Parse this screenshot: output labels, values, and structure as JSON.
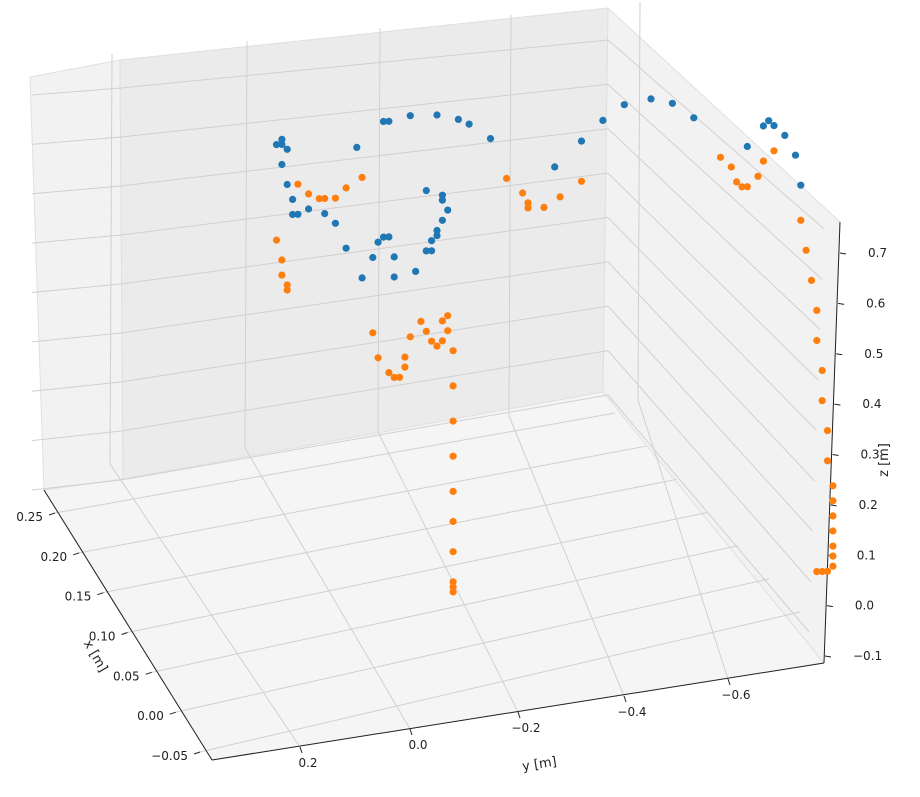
{
  "chart_data": {
    "type": "scatter3d",
    "title": "",
    "xlabel": "x [m]",
    "ylabel": "y [m]",
    "zlabel": "z [m]",
    "x_ticks": [
      "0.25",
      "0.20",
      "0.15",
      "0.10",
      "0.05",
      "0.00",
      "−0.05"
    ],
    "y_ticks": [
      "0.2",
      "0.0",
      "−0.2",
      "−0.4",
      "−0.6"
    ],
    "z_ticks": [
      "0.7",
      "0.6",
      "0.5",
      "0.4",
      "0.3",
      "0.2",
      "0.1",
      "0.0",
      "−0.1"
    ],
    "grid": true,
    "colors": {
      "series1": "#1f77b4",
      "series2": "#ff7f0e"
    },
    "series": [
      {
        "color": "#1f77b4",
        "points": [
          [
            0.0,
            0.3,
            0.66
          ],
          [
            0.0,
            0.29,
            0.67
          ],
          [
            0.0,
            0.29,
            0.66
          ],
          [
            0.0,
            0.28,
            0.65
          ],
          [
            0.0,
            0.29,
            0.62
          ],
          [
            0.0,
            0.28,
            0.58
          ],
          [
            0.0,
            0.27,
            0.55
          ],
          [
            0.0,
            0.27,
            0.52
          ],
          [
            0.0,
            0.26,
            0.52
          ],
          [
            0.0,
            0.24,
            0.53
          ],
          [
            0.0,
            0.21,
            0.52
          ],
          [
            0.0,
            0.19,
            0.5
          ],
          [
            0.0,
            0.17,
            0.45
          ],
          [
            0.0,
            0.14,
            0.39
          ],
          [
            0.0,
            0.12,
            0.43
          ],
          [
            0.0,
            0.11,
            0.46
          ],
          [
            0.0,
            0.1,
            0.47
          ],
          [
            0.0,
            0.09,
            0.47
          ],
          [
            0.0,
            0.08,
            0.43
          ],
          [
            0.0,
            0.08,
            0.39
          ],
          [
            0.0,
            0.04,
            0.4
          ],
          [
            0.0,
            0.01,
            0.44
          ],
          [
            0.0,
            0.0,
            0.48
          ],
          [
            0.0,
            -0.01,
            0.5
          ],
          [
            0.0,
            -0.02,
            0.52
          ],
          [
            0.0,
            -0.01,
            0.54
          ],
          [
            0.0,
            -0.01,
            0.55
          ],
          [
            0.0,
            0.02,
            0.56
          ],
          [
            0.0,
            0.0,
            0.47
          ],
          [
            0.0,
            0.01,
            0.46
          ],
          [
            0.0,
            0.02,
            0.44
          ],
          [
            0.0,
            0.15,
            0.65
          ],
          [
            0.0,
            0.1,
            0.7
          ],
          [
            0.0,
            0.09,
            0.7
          ],
          [
            0.0,
            0.05,
            0.71
          ],
          [
            0.0,
            0.0,
            0.71
          ],
          [
            0.0,
            -0.04,
            0.7
          ],
          [
            0.0,
            -0.06,
            0.69
          ],
          [
            0.0,
            -0.1,
            0.66
          ],
          [
            0.0,
            -0.22,
            0.6
          ],
          [
            0.0,
            -0.27,
            0.65
          ],
          [
            0.0,
            -0.31,
            0.69
          ],
          [
            0.0,
            -0.35,
            0.72
          ],
          [
            0.0,
            -0.4,
            0.73
          ],
          [
            0.0,
            -0.44,
            0.72
          ],
          [
            0.0,
            -0.48,
            0.69
          ],
          [
            0.0,
            -0.58,
            0.63
          ],
          [
            0.0,
            -0.61,
            0.67
          ],
          [
            0.0,
            -0.62,
            0.68
          ],
          [
            0.0,
            -0.63,
            0.67
          ],
          [
            0.0,
            -0.65,
            0.65
          ],
          [
            0.0,
            -0.67,
            0.61
          ],
          [
            0.0,
            -0.68,
            0.55
          ]
        ]
      },
      {
        "color": "#ff7f0e",
        "points": [
          [
            0.0,
            0.26,
            0.58
          ],
          [
            0.0,
            0.24,
            0.56
          ],
          [
            0.0,
            0.22,
            0.55
          ],
          [
            0.0,
            0.21,
            0.55
          ],
          [
            0.0,
            0.19,
            0.55
          ],
          [
            0.0,
            0.17,
            0.57
          ],
          [
            0.0,
            0.14,
            0.59
          ],
          [
            0.0,
            0.3,
            0.47
          ],
          [
            0.0,
            0.29,
            0.43
          ],
          [
            0.0,
            0.29,
            0.4
          ],
          [
            0.0,
            0.28,
            0.38
          ],
          [
            0.0,
            0.28,
            0.37
          ],
          [
            0.0,
            0.12,
            0.28
          ],
          [
            0.0,
            0.11,
            0.23
          ],
          [
            0.0,
            0.09,
            0.2
          ],
          [
            0.0,
            0.08,
            0.19
          ],
          [
            0.0,
            0.07,
            0.19
          ],
          [
            0.0,
            0.06,
            0.21
          ],
          [
            0.0,
            0.06,
            0.23
          ],
          [
            0.0,
            0.05,
            0.27
          ],
          [
            0.0,
            0.03,
            0.3
          ],
          [
            0.0,
            0.02,
            0.28
          ],
          [
            0.0,
            0.01,
            0.26
          ],
          [
            0.0,
            0.0,
            0.25
          ],
          [
            0.0,
            -0.01,
            0.26
          ],
          [
            0.0,
            -0.02,
            0.28
          ],
          [
            0.0,
            -0.01,
            0.3
          ],
          [
            0.0,
            -0.02,
            0.31
          ],
          [
            0.0,
            -0.03,
            0.24
          ],
          [
            0.0,
            -0.03,
            0.17
          ],
          [
            0.0,
            -0.03,
            0.1
          ],
          [
            0.0,
            -0.03,
            0.03
          ],
          [
            0.0,
            -0.03,
            -0.04
          ],
          [
            0.0,
            -0.03,
            -0.1
          ],
          [
            0.0,
            -0.03,
            -0.16
          ],
          [
            0.0,
            -0.03,
            -0.22
          ],
          [
            0.0,
            -0.03,
            -0.23
          ],
          [
            0.0,
            -0.03,
            -0.24
          ],
          [
            0.0,
            -0.13,
            0.58
          ],
          [
            0.0,
            -0.16,
            0.55
          ],
          [
            0.0,
            -0.17,
            0.53
          ],
          [
            0.0,
            -0.17,
            0.52
          ],
          [
            0.0,
            -0.2,
            0.52
          ],
          [
            0.0,
            -0.23,
            0.54
          ],
          [
            0.0,
            -0.27,
            0.57
          ],
          [
            0.0,
            -0.53,
            0.61
          ],
          [
            0.0,
            -0.55,
            0.59
          ],
          [
            0.0,
            -0.56,
            0.56
          ],
          [
            0.0,
            -0.57,
            0.55
          ],
          [
            0.0,
            -0.58,
            0.55
          ],
          [
            0.0,
            -0.6,
            0.57
          ],
          [
            0.0,
            -0.61,
            0.6
          ],
          [
            0.0,
            -0.63,
            0.62
          ],
          [
            0.0,
            -0.68,
            0.48
          ],
          [
            0.0,
            -0.69,
            0.42
          ],
          [
            0.0,
            -0.7,
            0.36
          ],
          [
            0.0,
            -0.71,
            0.3
          ],
          [
            0.0,
            -0.71,
            0.24
          ],
          [
            0.0,
            -0.72,
            0.18
          ],
          [
            0.0,
            -0.72,
            0.12
          ],
          [
            0.0,
            -0.73,
            0.06
          ],
          [
            0.0,
            -0.73,
            0.0
          ],
          [
            0.0,
            -0.74,
            -0.05
          ],
          [
            0.0,
            -0.74,
            -0.08
          ],
          [
            0.0,
            -0.74,
            -0.11
          ],
          [
            0.0,
            -0.74,
            -0.14
          ],
          [
            0.0,
            -0.74,
            -0.17
          ],
          [
            0.0,
            -0.74,
            -0.19
          ],
          [
            0.0,
            -0.74,
            -0.21
          ],
          [
            0.0,
            -0.73,
            -0.22
          ],
          [
            0.0,
            -0.72,
            -0.22
          ],
          [
            0.0,
            -0.71,
            -0.22
          ]
        ]
      }
    ]
  }
}
